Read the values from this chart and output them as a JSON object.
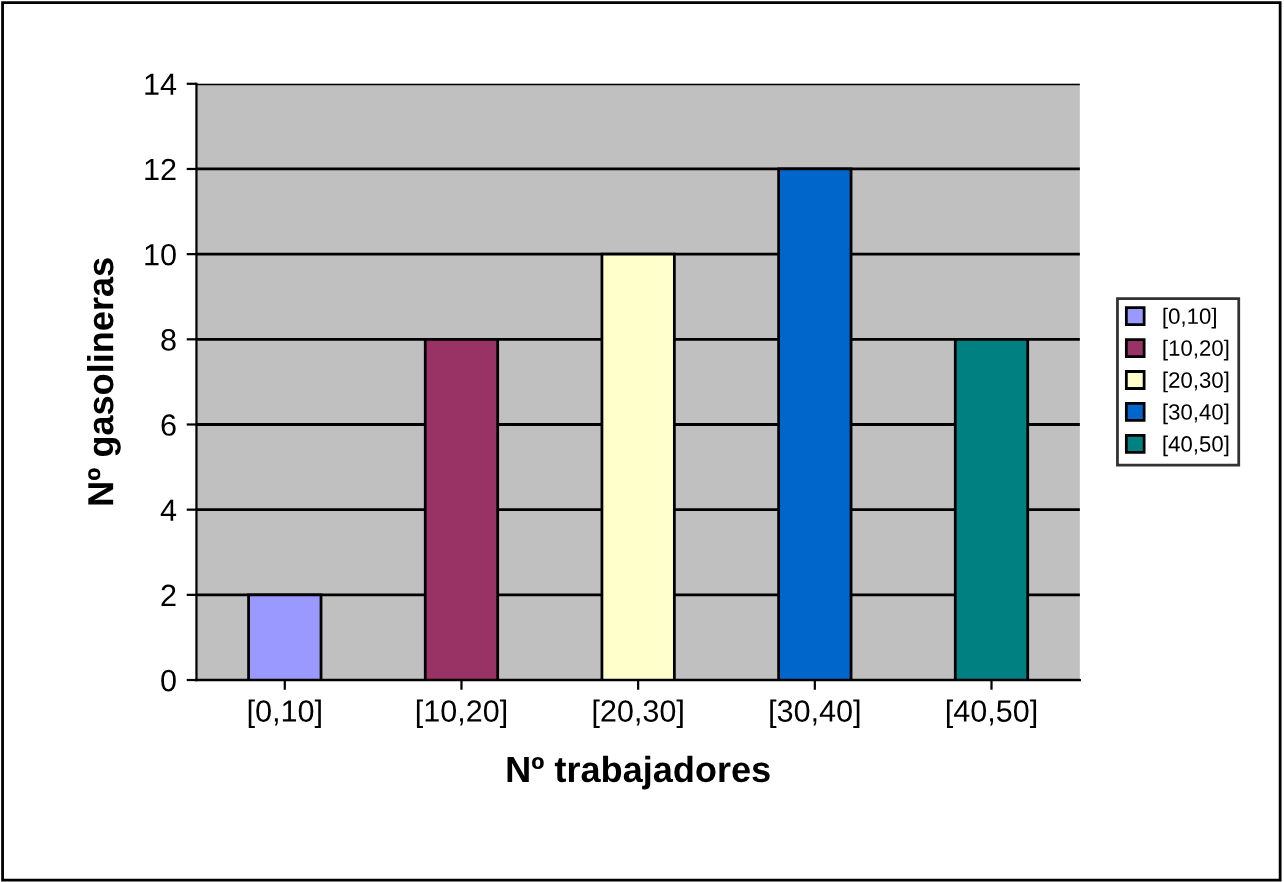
{
  "chart_data": {
    "type": "bar",
    "xlabel": "Nº trabajadores",
    "ylabel": "Nº gasolineras",
    "categories": [
      "[0,10]",
      "[10,20]",
      "[20,30]",
      "[30,40]",
      "[40,50]"
    ],
    "series": [
      {
        "name": "[0,10]",
        "color": "#9999ff",
        "values": [
          2,
          null,
          null,
          null,
          null
        ]
      },
      {
        "name": "[10,20]",
        "color": "#993366",
        "values": [
          null,
          8,
          null,
          null,
          null
        ]
      },
      {
        "name": "[20,30]",
        "color": "#ffffcc",
        "values": [
          null,
          null,
          10,
          null,
          null
        ]
      },
      {
        "name": "[30,40]",
        "color": "#0066cc",
        "values": [
          null,
          null,
          null,
          12,
          null
        ]
      },
      {
        "name": "[40,50]",
        "color": "#008080",
        "values": [
          null,
          null,
          null,
          null,
          8
        ]
      }
    ],
    "ylim": [
      0,
      14
    ],
    "yticks": [
      0,
      2,
      4,
      6,
      8,
      10,
      12,
      14
    ],
    "grid": "y",
    "legend": "right"
  }
}
